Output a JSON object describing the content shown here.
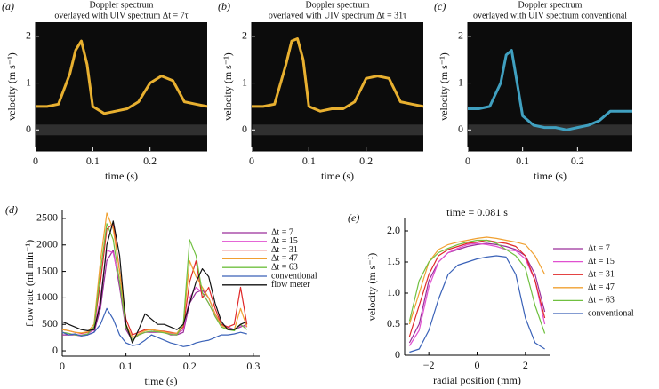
{
  "chart_data": [
    {
      "type": "spectrogram",
      "label": "(a)",
      "title": "Doppler spectrum",
      "subtitle": "overlayed with UIV spectrum Δt = 7τ",
      "xlabel": "time (s)",
      "ylabel": "velocity (m s⁻¹)",
      "xlim": [
        0,
        0.3
      ],
      "ylim": [
        -0.45,
        2.3
      ],
      "xticks": [
        0,
        0.1,
        0.2
      ],
      "yticks": [
        0,
        1,
        2
      ],
      "color": "#e8b030",
      "x": [
        0,
        0.02,
        0.04,
        0.06,
        0.07,
        0.08,
        0.09,
        0.1,
        0.12,
        0.14,
        0.16,
        0.18,
        0.2,
        0.22,
        0.24,
        0.26,
        0.28,
        0.3
      ],
      "values": [
        0.5,
        0.5,
        0.55,
        1.2,
        1.7,
        1.9,
        1.4,
        0.5,
        0.35,
        0.4,
        0.45,
        0.6,
        1.0,
        1.15,
        1.05,
        0.6,
        0.55,
        0.5
      ]
    },
    {
      "type": "spectrogram",
      "label": "(b)",
      "title": "Doppler spectrum",
      "subtitle": "overlayed with UIV spectrum Δt = 31τ",
      "xlabel": "time (s)",
      "ylabel": "velocity (m s⁻¹)",
      "xlim": [
        0,
        0.3
      ],
      "ylim": [
        -0.45,
        2.3
      ],
      "xticks": [
        0,
        0.1,
        0.2
      ],
      "yticks": [
        0,
        1,
        2
      ],
      "color": "#e8b030",
      "x": [
        0,
        0.02,
        0.04,
        0.06,
        0.07,
        0.08,
        0.09,
        0.1,
        0.12,
        0.14,
        0.16,
        0.18,
        0.2,
        0.22,
        0.24,
        0.26,
        0.28,
        0.3
      ],
      "values": [
        0.5,
        0.5,
        0.55,
        1.4,
        1.9,
        1.95,
        1.5,
        0.5,
        0.4,
        0.45,
        0.45,
        0.6,
        1.1,
        1.15,
        1.1,
        0.6,
        0.55,
        0.5
      ]
    },
    {
      "type": "spectrogram",
      "label": "(c)",
      "title": "Doppler spectrum",
      "subtitle": "overlayed with UIV spectrum conventional",
      "xlabel": "time (s)",
      "ylabel": "velocity (m s⁻¹)",
      "xlim": [
        0,
        0.3
      ],
      "ylim": [
        -0.45,
        2.3
      ],
      "xticks": [
        0,
        0.1,
        0.2
      ],
      "yticks": [
        0,
        1,
        2
      ],
      "color": "#40a0c0",
      "x": [
        0,
        0.02,
        0.04,
        0.06,
        0.07,
        0.08,
        0.09,
        0.1,
        0.12,
        0.14,
        0.16,
        0.18,
        0.2,
        0.22,
        0.24,
        0.26,
        0.28,
        0.3
      ],
      "values": [
        0.45,
        0.45,
        0.5,
        1.0,
        1.6,
        1.7,
        1.0,
        0.3,
        0.1,
        0.05,
        0.05,
        0.0,
        0.05,
        0.1,
        0.2,
        0.4,
        0.4,
        0.4
      ]
    },
    {
      "type": "line",
      "label": "(d)",
      "xlabel": "time (s)",
      "ylabel": "flow rate (ml min⁻¹)",
      "xlim": [
        0,
        0.31
      ],
      "ylim": [
        -100,
        2650
      ],
      "xticks": [
        0,
        0.1,
        0.2,
        0.3
      ],
      "yticks": [
        0,
        500,
        1000,
        1500,
        2000,
        2500
      ],
      "legend": "right",
      "x": [
        0,
        0.01,
        0.02,
        0.03,
        0.04,
        0.05,
        0.06,
        0.07,
        0.08,
        0.09,
        0.1,
        0.11,
        0.12,
        0.13,
        0.14,
        0.15,
        0.16,
        0.17,
        0.18,
        0.19,
        0.2,
        0.21,
        0.22,
        0.23,
        0.24,
        0.25,
        0.26,
        0.27,
        0.28,
        0.29
      ],
      "series": [
        {
          "name": "Δt = 7",
          "color": "#9b2d9b",
          "values": [
            300,
            300,
            300,
            280,
            300,
            350,
            800,
            1700,
            1900,
            1200,
            400,
            200,
            300,
            350,
            350,
            350,
            350,
            300,
            300,
            350,
            900,
            1100,
            1150,
            1000,
            700,
            500,
            450,
            400,
            450,
            500
          ]
        },
        {
          "name": "Δt = 15",
          "color": "#e050d0",
          "values": [
            350,
            330,
            300,
            300,
            320,
            400,
            1000,
            1900,
            1850,
            1300,
            450,
            250,
            300,
            350,
            370,
            360,
            350,
            330,
            320,
            400,
            1000,
            1200,
            1100,
            900,
            650,
            480,
            430,
            400,
            480,
            450
          ]
        },
        {
          "name": "Δt = 31",
          "color": "#e02828",
          "values": [
            400,
            380,
            350,
            330,
            350,
            450,
            1300,
            2300,
            2400,
            1500,
            600,
            300,
            350,
            400,
            400,
            380,
            370,
            350,
            330,
            450,
            1300,
            1700,
            1000,
            1200,
            800,
            500,
            450,
            500,
            1200,
            500
          ]
        },
        {
          "name": "Δt = 47",
          "color": "#f0a030",
          "values": [
            400,
            380,
            350,
            340,
            360,
            500,
            1700,
            2600,
            2300,
            1500,
            500,
            250,
            320,
            380,
            400,
            380,
            360,
            340,
            330,
            500,
            1700,
            1400,
            1200,
            1000,
            700,
            480,
            420,
            400,
            800,
            450
          ]
        },
        {
          "name": "Δt = 63",
          "color": "#70c040",
          "values": [
            350,
            330,
            300,
            290,
            320,
            450,
            1500,
            2400,
            2100,
            1300,
            450,
            200,
            300,
            350,
            370,
            360,
            340,
            310,
            300,
            500,
            2100,
            1800,
            1100,
            900,
            650,
            450,
            400,
            380,
            500,
            400
          ]
        },
        {
          "name": "conventional",
          "color": "#3a62b8",
          "values": [
            350,
            300,
            320,
            280,
            300,
            350,
            500,
            800,
            600,
            300,
            150,
            100,
            120,
            200,
            300,
            250,
            200,
            150,
            120,
            80,
            100,
            150,
            180,
            200,
            250,
            300,
            300,
            320,
            350,
            320
          ]
        },
        {
          "name": "flow meter",
          "color": "#111111",
          "values": [
            550,
            500,
            450,
            400,
            380,
            400,
            900,
            2000,
            2450,
            1800,
            500,
            150,
            400,
            700,
            600,
            500,
            500,
            450,
            400,
            500,
            900,
            1300,
            1550,
            1400,
            900,
            550,
            400,
            400,
            500,
            550
          ]
        }
      ]
    },
    {
      "type": "line",
      "label": "(e)",
      "title": "time = 0.081 s",
      "xlabel": "radial position (mm)",
      "ylabel": "velocity (m s⁻¹)",
      "xlim": [
        -3,
        3
      ],
      "ylim": [
        0,
        2.2
      ],
      "xticks": [
        {
          "value": -2,
          "label": "−2"
        },
        0,
        2
      ],
      "yticks": [
        0,
        0.5,
        {
          "value": 1,
          "label": "1.0"
        },
        1.5,
        {
          "value": 2,
          "label": "2.0"
        }
      ],
      "legend": "right",
      "x": [
        -2.8,
        -2.4,
        -2,
        -1.6,
        -1.2,
        -0.8,
        -0.4,
        0,
        0.4,
        0.8,
        1.2,
        1.6,
        2,
        2.4,
        2.8
      ],
      "series": [
        {
          "name": "Δt = 7",
          "color": "#9b2d9b",
          "values": [
            0.2,
            0.5,
            1.2,
            1.5,
            1.65,
            1.7,
            1.75,
            1.78,
            1.8,
            1.78,
            1.75,
            1.7,
            1.6,
            1.3,
            0.7
          ]
        },
        {
          "name": "Δt = 15",
          "color": "#e050d0",
          "values": [
            0.15,
            0.4,
            1.1,
            1.5,
            1.65,
            1.72,
            1.78,
            1.8,
            1.78,
            1.75,
            1.7,
            1.68,
            1.55,
            1.2,
            0.5
          ]
        },
        {
          "name": "Δt = 31",
          "color": "#e02828",
          "values": [
            0.3,
            0.8,
            1.3,
            1.6,
            1.7,
            1.75,
            1.8,
            1.82,
            1.85,
            1.82,
            1.8,
            1.75,
            1.6,
            1.2,
            0.6
          ]
        },
        {
          "name": "Δt = 47",
          "color": "#f0a030",
          "values": [
            0.5,
            1.0,
            1.5,
            1.7,
            1.78,
            1.82,
            1.85,
            1.88,
            1.9,
            1.88,
            1.85,
            1.82,
            1.78,
            1.6,
            1.3
          ]
        },
        {
          "name": "Δt = 63",
          "color": "#70c040",
          "values": [
            0.55,
            1.2,
            1.5,
            1.65,
            1.72,
            1.78,
            1.82,
            1.85,
            1.85,
            1.8,
            1.7,
            1.6,
            1.4,
            0.8,
            0.35
          ]
        },
        {
          "name": "conventional",
          "color": "#3a62b8",
          "values": [
            0.05,
            0.1,
            0.4,
            0.9,
            1.3,
            1.45,
            1.5,
            1.55,
            1.58,
            1.6,
            1.58,
            1.3,
            0.6,
            0.2,
            0.1
          ]
        }
      ]
    }
  ]
}
